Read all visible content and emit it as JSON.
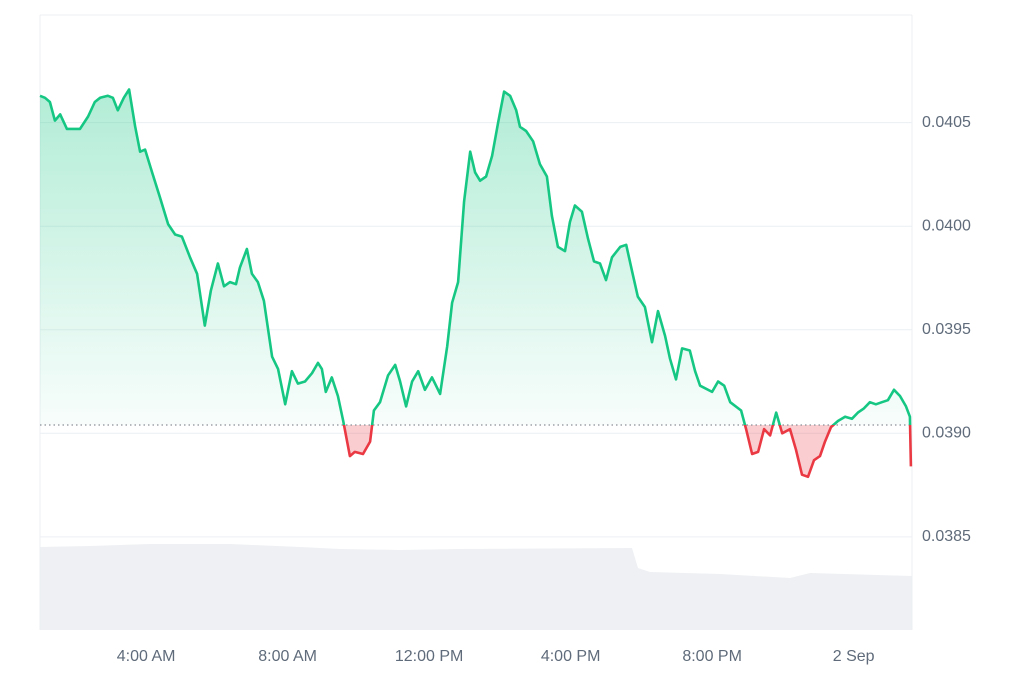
{
  "chart_data": {
    "type": "line",
    "x": [
      1.0,
      1.14,
      1.28,
      1.42,
      1.57,
      1.76,
      1.9,
      2.13,
      2.36,
      2.55,
      2.7,
      2.92,
      3.06,
      3.2,
      3.37,
      3.52,
      3.69,
      3.83,
      3.97,
      4.17,
      4.39,
      4.62,
      4.82,
      5.01,
      5.24,
      5.44,
      5.66,
      5.83,
      6.03,
      6.2,
      6.37,
      6.54,
      6.65,
      6.85,
      6.99,
      7.16,
      7.33,
      7.56,
      7.73,
      7.93,
      8.12,
      8.29,
      8.49,
      8.69,
      8.86,
      8.97,
      9.08,
      9.25,
      9.42,
      9.57,
      9.76,
      9.9,
      10.13,
      10.33,
      10.44,
      10.61,
      10.84,
      11.04,
      11.18,
      11.35,
      11.52,
      11.69,
      11.88,
      12.08,
      12.31,
      12.51,
      12.65,
      12.82,
      12.99,
      13.16,
      13.3,
      13.44,
      13.61,
      13.78,
      13.95,
      14.12,
      14.29,
      14.46,
      14.57,
      14.74,
      14.94,
      15.13,
      15.33,
      15.47,
      15.64,
      15.84,
      15.98,
      16.12,
      16.32,
      16.49,
      16.66,
      16.83,
      17.0,
      17.17,
      17.4,
      17.57,
      17.74,
      17.9,
      18.1,
      18.3,
      18.47,
      18.67,
      18.81,
      18.98,
      19.15,
      19.37,
      19.52,
      19.66,
      20.0,
      20.17,
      20.34,
      20.51,
      20.82,
      20.96,
      21.13,
      21.3,
      21.47,
      21.64,
      21.81,
      21.98,
      22.2,
      22.37,
      22.54,
      22.71,
      22.88,
      23.05,
      23.19,
      23.36,
      23.56,
      23.76,
      23.95,
      24.12,
      24.29,
      24.46,
      24.63,
      24.8,
      24.97,
      25.14,
      25.31,
      25.48,
      25.59,
      25.62
    ],
    "values": [
      0.04063,
      0.04062,
      0.0406,
      0.04051,
      0.04054,
      0.04047,
      0.04047,
      0.04047,
      0.04053,
      0.0406,
      0.04062,
      0.04063,
      0.04062,
      0.04056,
      0.04062,
      0.04066,
      0.04048,
      0.04036,
      0.04037,
      0.04026,
      0.04014,
      0.04001,
      0.03996,
      0.03995,
      0.03985,
      0.03977,
      0.03952,
      0.03969,
      0.03982,
      0.03971,
      0.03973,
      0.03972,
      0.0398,
      0.03989,
      0.03977,
      0.03973,
      0.03964,
      0.03937,
      0.03931,
      0.03914,
      0.0393,
      0.03924,
      0.03925,
      0.03929,
      0.03934,
      0.03931,
      0.0392,
      0.03927,
      0.03918,
      0.03906,
      0.03889,
      0.03891,
      0.0389,
      0.03896,
      0.03911,
      0.03915,
      0.03928,
      0.03933,
      0.03925,
      0.03913,
      0.03925,
      0.0393,
      0.03921,
      0.03927,
      0.03919,
      0.03942,
      0.03963,
      0.03973,
      0.04012,
      0.04036,
      0.04026,
      0.04022,
      0.04024,
      0.04034,
      0.0405,
      0.04065,
      0.04063,
      0.04056,
      0.04048,
      0.04046,
      0.04041,
      0.0403,
      0.04024,
      0.04005,
      0.0399,
      0.03988,
      0.04002,
      0.0401,
      0.04007,
      0.03994,
      0.03983,
      0.03982,
      0.03974,
      0.03985,
      0.0399,
      0.03991,
      0.03978,
      0.03966,
      0.03961,
      0.03944,
      0.03959,
      0.03947,
      0.03936,
      0.03926,
      0.03941,
      0.0394,
      0.0393,
      0.03923,
      0.0392,
      0.03925,
      0.03923,
      0.03915,
      0.03911,
      0.03902,
      0.0389,
      0.03891,
      0.03902,
      0.03899,
      0.0391,
      0.039,
      0.03902,
      0.03892,
      0.0388,
      0.03879,
      0.03887,
      0.03889,
      0.03896,
      0.03903,
      0.03906,
      0.03908,
      0.03907,
      0.0391,
      0.03912,
      0.03915,
      0.03914,
      0.03915,
      0.03916,
      0.03921,
      0.03918,
      0.03913,
      0.03908,
      0.03884
    ],
    "baseline": 0.03904,
    "color_up": "#16c784",
    "color_down": "#ea3943",
    "xlim": [
      1,
      25.65
    ],
    "xticks": [
      {
        "value": 4,
        "label": "4:00 AM"
      },
      {
        "value": 8,
        "label": "8:00 AM"
      },
      {
        "value": 12,
        "label": "12:00 PM"
      },
      {
        "value": 16,
        "label": "4:00 PM"
      },
      {
        "value": 20,
        "label": "8:00 PM"
      },
      {
        "value": 24,
        "label": "2 Sep"
      }
    ],
    "ylim": [
      0.03805,
      0.04102
    ],
    "yticks": [
      0.0405,
      {
        "value": 0.04,
        "label": "0.0400"
      },
      0.0395,
      {
        "value": 0.039,
        "label": "0.0390"
      },
      0.0385
    ],
    "grid": true
  }
}
